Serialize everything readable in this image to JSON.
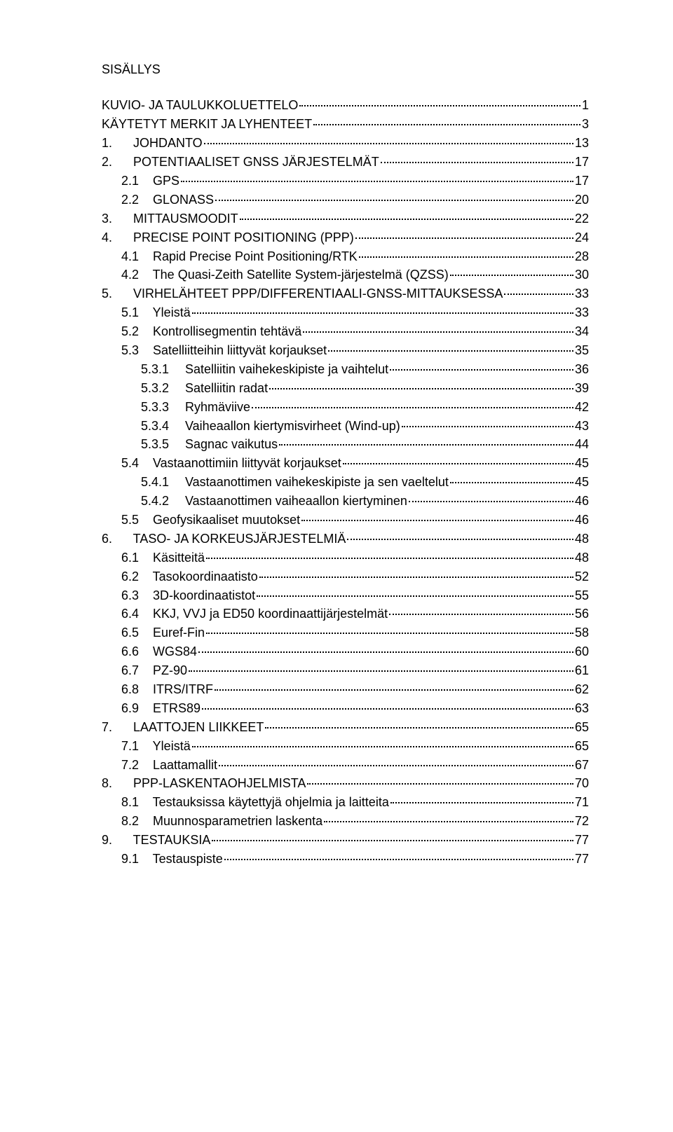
{
  "title": "SISÄLLYS",
  "toc": [
    {
      "indent": 0,
      "num": "",
      "label": "KUVIO- JA TAULUKKOLUETTELO",
      "page": "1"
    },
    {
      "indent": 0,
      "num": "",
      "label": "KÄYTETYT MERKIT JA LYHENTEET",
      "page": "3"
    },
    {
      "indent": 0,
      "num": "1.",
      "label": "JOHDANTO",
      "page": "13"
    },
    {
      "indent": 0,
      "num": "2.",
      "label": "POTENTIAALISET GNSS JÄRJESTELMÄT",
      "page": "17"
    },
    {
      "indent": 1,
      "num": "2.1",
      "label": "GPS",
      "page": "17"
    },
    {
      "indent": 1,
      "num": "2.2",
      "label": "GLONASS",
      "page": "20"
    },
    {
      "indent": 0,
      "num": "3.",
      "label": "MITTAUSMOODIT",
      "page": "22"
    },
    {
      "indent": 0,
      "num": "4.",
      "label": "PRECISE POINT POSITIONING (PPP)",
      "page": "24"
    },
    {
      "indent": 1,
      "num": "4.1",
      "label": "Rapid Precise Point Positioning/RTK",
      "page": "28"
    },
    {
      "indent": 1,
      "num": "4.2",
      "label": "The Quasi-Zeith Satellite System-järjestelmä (QZSS)",
      "page": "30"
    },
    {
      "indent": 0,
      "num": "5.",
      "label": "VIRHELÄHTEET PPP/DIFFERENTIAALI-GNSS-MITTAUKSESSA",
      "page": "33"
    },
    {
      "indent": 1,
      "num": "5.1",
      "label": "Yleistä",
      "page": "33"
    },
    {
      "indent": 1,
      "num": "5.2",
      "label": "Kontrollisegmentin tehtävä",
      "page": "34"
    },
    {
      "indent": 1,
      "num": "5.3",
      "label": "Satelliitteihin liittyvät korjaukset",
      "page": "35"
    },
    {
      "indent": 2,
      "num": "5.3.1",
      "label": "Satelliitin vaihekeskipiste ja vaihtelut",
      "page": "36"
    },
    {
      "indent": 2,
      "num": "5.3.2",
      "label": "Satelliitin radat",
      "page": "39"
    },
    {
      "indent": 2,
      "num": "5.3.3",
      "label": "Ryhmäviive",
      "page": "42"
    },
    {
      "indent": 2,
      "num": "5.3.4",
      "label": "Vaiheaallon kiertymisvirheet (Wind-up)",
      "page": "43"
    },
    {
      "indent": 2,
      "num": "5.3.5",
      "label": "Sagnac vaikutus",
      "page": "44"
    },
    {
      "indent": 1,
      "num": "5.4",
      "label": "Vastaanottimiin liittyvät korjaukset",
      "page": "45"
    },
    {
      "indent": 2,
      "num": "5.4.1",
      "label": "Vastaanottimen vaihekeskipiste ja sen vaeltelut",
      "page": "45"
    },
    {
      "indent": 2,
      "num": "5.4.2",
      "label": "Vastaanottimen vaiheaallon kiertyminen",
      "page": "46"
    },
    {
      "indent": 1,
      "num": "5.5",
      "label": "Geofysikaaliset muutokset",
      "page": "46"
    },
    {
      "indent": 0,
      "num": "6.",
      "label": "TASO- JA KORKEUSJÄRJESTELMIÄ",
      "page": "48"
    },
    {
      "indent": 1,
      "num": "6.1",
      "label": "Käsitteitä",
      "page": "48"
    },
    {
      "indent": 1,
      "num": "6.2",
      "label": "Tasokoordinaatisto",
      "page": "52"
    },
    {
      "indent": 1,
      "num": "6.3",
      "label": "3D-koordinaatistot",
      "page": "55"
    },
    {
      "indent": 1,
      "num": "6.4",
      "label": "KKJ, VVJ ja ED50 koordinaattijärjestelmät",
      "page": "56"
    },
    {
      "indent": 1,
      "num": "6.5",
      "label": "Euref-Fin",
      "page": "58"
    },
    {
      "indent": 1,
      "num": "6.6",
      "label": "WGS84",
      "page": "60"
    },
    {
      "indent": 1,
      "num": "6.7",
      "label": "PZ-90",
      "page": "61"
    },
    {
      "indent": 1,
      "num": "6.8",
      "label": "ITRS/ITRF",
      "page": "62"
    },
    {
      "indent": 1,
      "num": "6.9",
      "label": "ETRS89",
      "page": "63"
    },
    {
      "indent": 0,
      "num": "7.",
      "label": "LAATTOJEN LIIKKEET",
      "page": "65"
    },
    {
      "indent": 1,
      "num": "7.1",
      "label": "Yleistä",
      "page": "65"
    },
    {
      "indent": 1,
      "num": "7.2",
      "label": "Laattamallit",
      "page": "67"
    },
    {
      "indent": 0,
      "num": "8.",
      "label": "PPP-LASKENTAOHJELMISTA",
      "page": "70"
    },
    {
      "indent": 1,
      "num": "8.1",
      "label": "Testauksissa käytettyjä ohjelmia ja laitteita",
      "page": "71"
    },
    {
      "indent": 1,
      "num": "8.2",
      "label": "Muunnosparametrien laskenta",
      "page": "72"
    },
    {
      "indent": 0,
      "num": "9.",
      "label": "TESTAUKSIA",
      "page": "77"
    },
    {
      "indent": 1,
      "num": "9.1",
      "label": "Testauspiste",
      "page": "77"
    }
  ]
}
